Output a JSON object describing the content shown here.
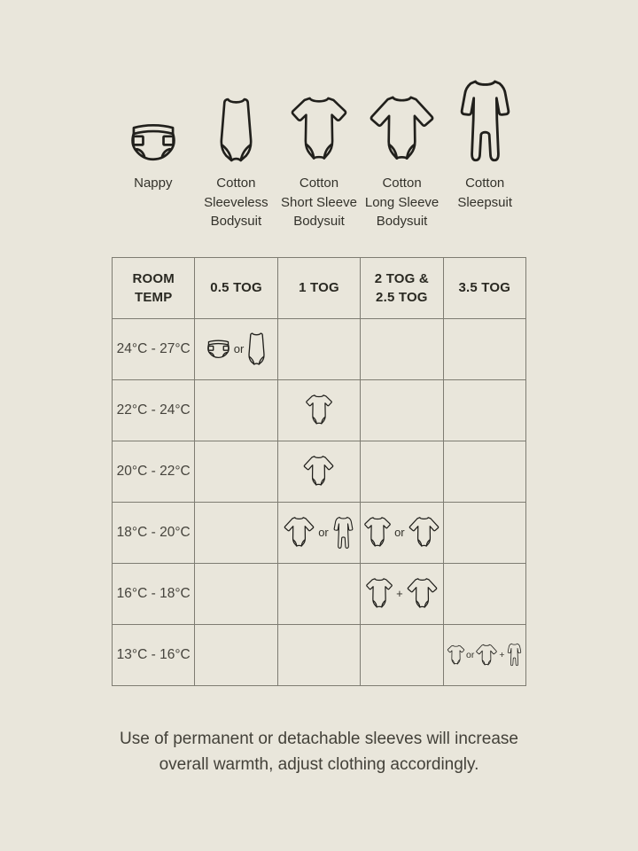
{
  "colors": {
    "background": "#e9e6db",
    "table_border": "#7e7c72",
    "icon_stroke": "#21201c",
    "header_text": "#2a2922",
    "body_text": "#45433c"
  },
  "legend": {
    "items": [
      {
        "icon": "nappy-icon",
        "lines": [
          "Nappy"
        ]
      },
      {
        "icon": "sleeveless-bodysuit-icon",
        "lines": [
          "Cotton",
          "Sleeveless",
          "Bodysuit"
        ]
      },
      {
        "icon": "short-sleeve-bodysuit-icon",
        "lines": [
          "Cotton",
          "Short Sleeve",
          "Bodysuit"
        ]
      },
      {
        "icon": "long-sleeve-bodysuit-icon",
        "lines": [
          "Cotton",
          "Long Sleeve",
          "Bodysuit"
        ]
      },
      {
        "icon": "sleepsuit-icon",
        "lines": [
          "Cotton",
          "Sleepsuit"
        ]
      }
    ]
  },
  "table": {
    "headers": [
      {
        "lines": [
          "ROOM",
          "TEMP"
        ]
      },
      {
        "lines": [
          "0.5 TOG"
        ]
      },
      {
        "lines": [
          "1 TOG"
        ]
      },
      {
        "lines": [
          "2 TOG &",
          "2.5 TOG"
        ]
      },
      {
        "lines": [
          "3.5 TOG"
        ]
      }
    ],
    "rows": [
      {
        "temp": "24°C - 27°C",
        "cells": [
          [
            {
              "icon": "nappy"
            },
            {
              "op": "or"
            },
            {
              "icon": "sleeveless-bodysuit"
            }
          ],
          [],
          [],
          []
        ]
      },
      {
        "temp": "22°C - 24°C",
        "cells": [
          [],
          [
            {
              "icon": "short-sleeve-bodysuit"
            }
          ],
          [],
          []
        ]
      },
      {
        "temp": "20°C - 22°C",
        "cells": [
          [],
          [
            {
              "icon": "long-sleeve-bodysuit"
            }
          ],
          [],
          []
        ]
      },
      {
        "temp": "18°C - 20°C",
        "cells": [
          [],
          [
            {
              "icon": "long-sleeve-bodysuit"
            },
            {
              "op": "or"
            },
            {
              "icon": "sleepsuit"
            }
          ],
          [
            {
              "icon": "short-sleeve-bodysuit"
            },
            {
              "op": "or"
            },
            {
              "icon": "long-sleeve-bodysuit"
            }
          ],
          []
        ]
      },
      {
        "temp": "16°C - 18°C",
        "cells": [
          [],
          [],
          [
            {
              "icon": "short-sleeve-bodysuit"
            },
            {
              "op": "+"
            },
            {
              "icon": "long-sleeve-bodysuit"
            }
          ],
          []
        ]
      },
      {
        "temp": "13°C - 16°C",
        "cells": [
          [],
          [],
          [],
          [
            {
              "icon": "short-sleeve-bodysuit"
            },
            {
              "op": "or"
            },
            {
              "icon": "long-sleeve-bodysuit"
            },
            {
              "op": "+"
            },
            {
              "icon": "sleepsuit"
            }
          ]
        ]
      }
    ]
  },
  "footnote": {
    "lines": [
      "Use of permanent or detachable sleeves will increase",
      "overall warmth, adjust clothing accordingly."
    ]
  },
  "chart_data": {
    "type": "table",
    "title": "Baby sleepwear TOG guide by room temperature",
    "columns": [
      "ROOM TEMP",
      "0.5 TOG",
      "1 TOG",
      "2 TOG & 2.5 TOG",
      "3.5 TOG"
    ],
    "rows": [
      [
        "24°C - 27°C",
        "Nappy or Cotton Sleeveless Bodysuit",
        "",
        "",
        ""
      ],
      [
        "22°C - 24°C",
        "",
        "Cotton Short Sleeve Bodysuit",
        "",
        ""
      ],
      [
        "20°C - 22°C",
        "",
        "Cotton Long Sleeve Bodysuit",
        "",
        ""
      ],
      [
        "18°C - 20°C",
        "",
        "Cotton Long Sleeve Bodysuit or Cotton Sleepsuit",
        "Cotton Short Sleeve Bodysuit or Cotton Long Sleeve Bodysuit",
        ""
      ],
      [
        "16°C - 18°C",
        "",
        "",
        "Cotton Short Sleeve Bodysuit + Cotton Long Sleeve Bodysuit",
        ""
      ],
      [
        "13°C - 16°C",
        "",
        "",
        "",
        "Cotton Short Sleeve Bodysuit or Cotton Long Sleeve Bodysuit + Cotton Sleepsuit"
      ]
    ],
    "legend_entries": [
      "Nappy",
      "Cotton Sleeveless Bodysuit",
      "Cotton Short Sleeve Bodysuit",
      "Cotton Long Sleeve Bodysuit",
      "Cotton Sleepsuit"
    ],
    "footnote": "Use of permanent or detachable sleeves will increase overall warmth, adjust clothing accordingly."
  }
}
